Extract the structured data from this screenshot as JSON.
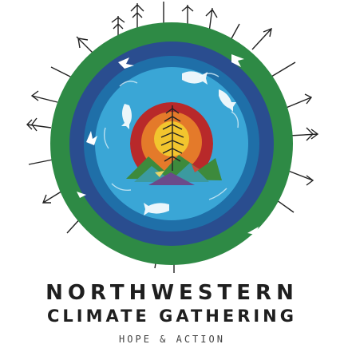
{
  "logo": {
    "colors": {
      "outer_ring": "#2e8a45",
      "ring_dark_blue": "#2a4d8f",
      "ring_mid_blue": "#1f6fa8",
      "ring_light_blue": "#3aa6d6",
      "sun_red": "#b8292a",
      "sun_orange": "#e47a2a",
      "sun_yellow": "#f2c52e",
      "mountain_green": "#3d8a3c",
      "mountain_teal": "#3b9aa0",
      "mountain_purple": "#6b4a8a",
      "tree_ink": "#222222"
    },
    "icons": [
      "tree-ring-icon",
      "sun-icon",
      "mountain-icon",
      "salmon-icon",
      "bird-icon"
    ]
  },
  "title": {
    "line1": "NORTHWESTERN",
    "line2": "CLIMATE GATHERING"
  },
  "tagline": "HOPE & ACTION"
}
